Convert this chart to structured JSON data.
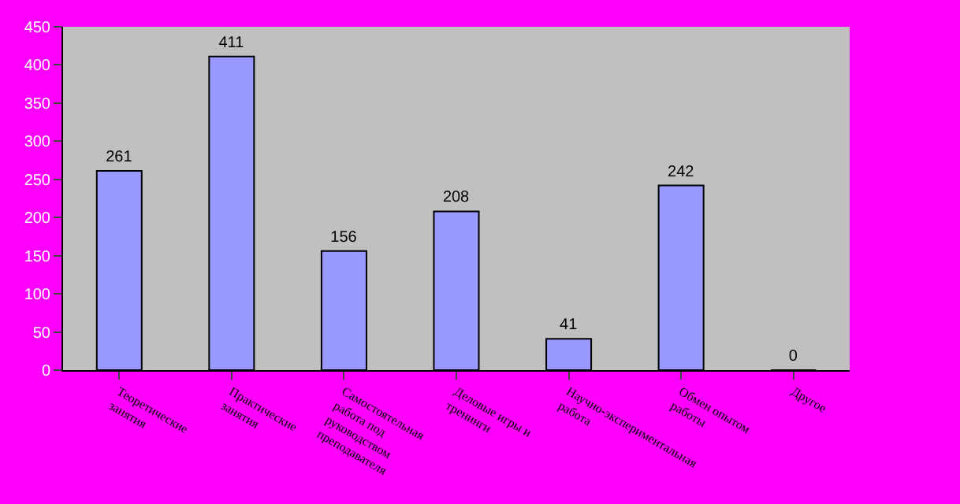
{
  "chart_data": {
    "type": "bar",
    "categories": [
      "Теоретические занятия",
      "Практические занятия",
      "Самостоятельная работа под руководством преподавателя",
      "Деловые игры и тренинги",
      "Научно-экспериментальная работа",
      "Обмен опытом работы",
      "Другое"
    ],
    "values": [
      261,
      411,
      156,
      208,
      41,
      242,
      0
    ],
    "color": "#9999ff",
    "ylim": [
      0,
      450
    ],
    "yticks": [
      0,
      50,
      100,
      150,
      200,
      250,
      300,
      350,
      400,
      450
    ],
    "data_labels": true,
    "grid": false
  }
}
